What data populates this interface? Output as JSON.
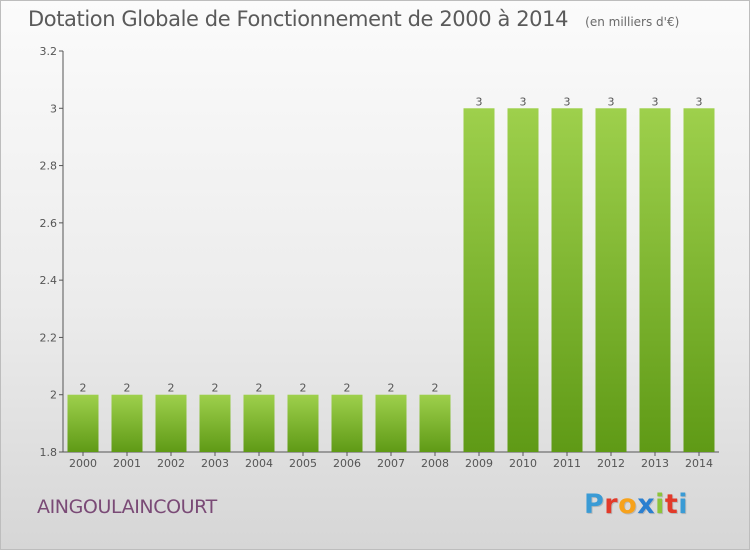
{
  "header": {
    "title": "Dotation Globale de Fonctionnement de 2000 à 2014",
    "subtitle": "(en milliers d'€)"
  },
  "footer": {
    "commune": "AINGOULAINCOURT",
    "logo_letters": [
      "P",
      "r",
      "o",
      "x",
      "i",
      "t",
      "i"
    ],
    "logo_colors": [
      "#3a9bd5",
      "#e23a2a",
      "#f7a21b",
      "#2a7fd0",
      "#8cc43a",
      "#e23a2a",
      "#3a9bd5"
    ]
  },
  "colors": {
    "bar_light": "#9ed04c",
    "bar_dark": "#5f9a16",
    "axis": "#555555",
    "text": "#555555"
  },
  "chart_data": {
    "type": "bar",
    "title": "Dotation Globale de Fonctionnement de 2000 à 2014",
    "subtitle": "(en milliers d'€)",
    "categories": [
      "2000",
      "2001",
      "2002",
      "2003",
      "2004",
      "2005",
      "2006",
      "2007",
      "2008",
      "2009",
      "2010",
      "2011",
      "2012",
      "2013",
      "2014"
    ],
    "values": [
      2,
      2,
      2,
      2,
      2,
      2,
      2,
      2,
      2,
      3,
      3,
      3,
      3,
      3,
      3
    ],
    "data_labels": [
      "2",
      "2",
      "2",
      "2",
      "2",
      "2",
      "2",
      "2",
      "2",
      "3",
      "3",
      "3",
      "3",
      "3",
      "3"
    ],
    "ylim": [
      1.8,
      3.2
    ],
    "yticks": [
      1.8,
      2,
      2.2,
      2.4,
      2.6,
      2.8,
      3,
      3.2
    ],
    "ytick_labels": [
      "1.8",
      "2",
      "2.2",
      "2.4",
      "2.6",
      "2.8",
      "3",
      "3.2"
    ],
    "xlabel": "",
    "ylabel": "",
    "grid": false,
    "legend": "none"
  }
}
